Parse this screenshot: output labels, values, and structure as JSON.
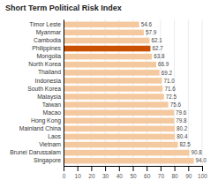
{
  "chart_data": {
    "type": "bar",
    "orientation": "horizontal",
    "title": "Short Term Political Risk Index",
    "categories": [
      "Singapore",
      "Brunei Darussalam",
      "Vietnam",
      "Laos",
      "Mainland China",
      "Hong Kong",
      "Macao",
      "Taiwan",
      "Malaysia",
      "South Korea",
      "Indonesia",
      "Thailand",
      "North Korea",
      "Mongolia",
      "Philippines",
      "Cambodia",
      "Myanmar",
      "Timor Leste"
    ],
    "values": [
      94.0,
      90.8,
      82.5,
      80.4,
      80.2,
      79.8,
      79.6,
      75.6,
      72.5,
      71.6,
      71.0,
      69.2,
      66.9,
      63.8,
      62.7,
      62.1,
      57.9,
      54.6
    ],
    "value_labels": [
      "94.0",
      "90.8",
      "82.5",
      "80.4",
      "80.2",
      "79.8",
      "79.6",
      "75.6",
      "72.5",
      "71.6",
      "71.0",
      "69.2",
      "66.9",
      "63.8",
      "62.7",
      "62.1",
      "57.9",
      "54.6"
    ],
    "colors": [
      "#f5c9a0",
      "#f5c9a0",
      "#f5c9a0",
      "#f5c9a0",
      "#f5c9a0",
      "#f5c9a0",
      "#f5c9a0",
      "#f5c9a0",
      "#f5c9a0",
      "#f5c9a0",
      "#f5c9a0",
      "#f5c9a0",
      "#f5c9a0",
      "#f5c9a0",
      "#c85000",
      "#f5c9a0",
      "#f5c9a0",
      "#f5c9a0"
    ],
    "xlim": [
      0,
      100
    ],
    "xticks": [
      0,
      10,
      20,
      30,
      40,
      50,
      60,
      70,
      80,
      90,
      100
    ],
    "grid": true,
    "data_labels": true
  }
}
